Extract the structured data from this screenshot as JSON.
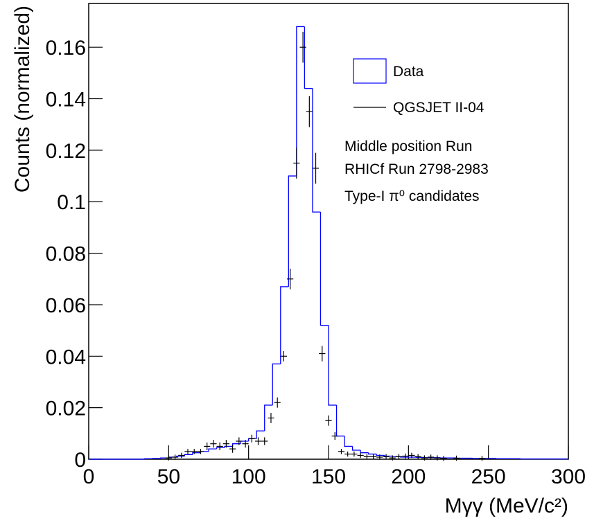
{
  "chart_data": {
    "type": "histogram",
    "x_label": "Mγγ (MeV/c²)",
    "y_label": "Counts (normalized)",
    "annotations": [
      "Middle position Run",
      "RHICf Run 2798-2983",
      "Type-I π⁰ candidates"
    ],
    "xlim": [
      0,
      300
    ],
    "ylim": [
      0,
      0.177
    ],
    "xticks": [
      0,
      50,
      100,
      150,
      200,
      250,
      300
    ],
    "yticks": [
      0,
      0.02,
      0.04,
      0.06,
      0.08,
      0.1,
      0.12,
      0.14,
      0.16
    ],
    "series": [
      {
        "name": "Data",
        "color": "#0000ff",
        "type": "histogram",
        "bins": [
          0,
          5,
          10,
          15,
          20,
          25,
          30,
          35,
          40,
          45,
          50,
          55,
          60,
          65,
          70,
          75,
          80,
          85,
          90,
          95,
          100,
          105,
          110,
          115,
          120,
          125,
          130,
          135,
          140,
          145,
          150,
          155,
          160,
          165,
          170,
          175,
          180,
          185,
          190,
          195,
          200,
          205,
          210,
          215,
          220,
          225,
          230,
          235,
          240,
          245,
          250,
          255,
          260,
          265,
          270,
          275,
          280,
          285,
          290,
          295,
          300
        ],
        "values": [
          0,
          0,
          0,
          0,
          0,
          0,
          0,
          0.0002,
          0.0003,
          0.0005,
          0.0008,
          0.0012,
          0.0018,
          0.0025,
          0.003,
          0.004,
          0.0045,
          0.005,
          0.006,
          0.007,
          0.008,
          0.011,
          0.021,
          0.037,
          0.067,
          0.11,
          0.168,
          0.144,
          0.096,
          0.052,
          0.021,
          0.009,
          0.005,
          0.0035,
          0.0025,
          0.002,
          0.0015,
          0.0012,
          0.001,
          0.0008,
          0.0008,
          0.0007,
          0.0006,
          0.0006,
          0.0005,
          0.0005,
          0.0004,
          0.0004,
          0.0003,
          0.0003,
          0.0003,
          0.0002,
          0.0002,
          0.0002,
          0.0001,
          0.0001,
          0.0001,
          0.0001,
          0.0001,
          0.0001
        ]
      },
      {
        "name": "QGSJET II-04",
        "color": "#000000",
        "type": "errorbar",
        "x": [
          50,
          54,
          58,
          62,
          66,
          70,
          74,
          78,
          82,
          86,
          90,
          94,
          98,
          102,
          106,
          110,
          114,
          118,
          122,
          126,
          130,
          134,
          138,
          142,
          146,
          150,
          154,
          158,
          162,
          166,
          170,
          174,
          178,
          182,
          186,
          190,
          194,
          198,
          202,
          206,
          210,
          214,
          218,
          222,
          230,
          246
        ],
        "values": [
          0.0005,
          0.0008,
          0.0015,
          0.003,
          0.003,
          0.003,
          0.005,
          0.006,
          0.005,
          0.006,
          0.004,
          0.007,
          0.006,
          0.008,
          0.007,
          0.007,
          0.016,
          0.022,
          0.04,
          0.07,
          0.115,
          0.16,
          0.135,
          0.113,
          0.041,
          0.015,
          0.009,
          0.003,
          0.002,
          0.002,
          0.0015,
          0.001,
          0.001,
          0.0008,
          0.001,
          0.0005,
          0.001,
          0.0012,
          0.0015,
          0.001,
          0.0005,
          0.0008,
          0.0005,
          0.0003,
          0.0004,
          0.0003
        ],
        "errors": [
          0.001,
          0.001,
          0.001,
          0.001,
          0.001,
          0.001,
          0.0015,
          0.0015,
          0.0015,
          0.0015,
          0.0015,
          0.0015,
          0.0015,
          0.0015,
          0.0015,
          0.0015,
          0.002,
          0.002,
          0.002,
          0.004,
          0.006,
          0.006,
          0.006,
          0.006,
          0.003,
          0.002,
          0.0015,
          0.001,
          0.001,
          0.001,
          0.001,
          0.001,
          0.001,
          0.001,
          0.001,
          0.001,
          0.001,
          0.001,
          0.001,
          0.001,
          0.001,
          0.001,
          0.001,
          0.001,
          0.001,
          0.001
        ]
      }
    ]
  }
}
